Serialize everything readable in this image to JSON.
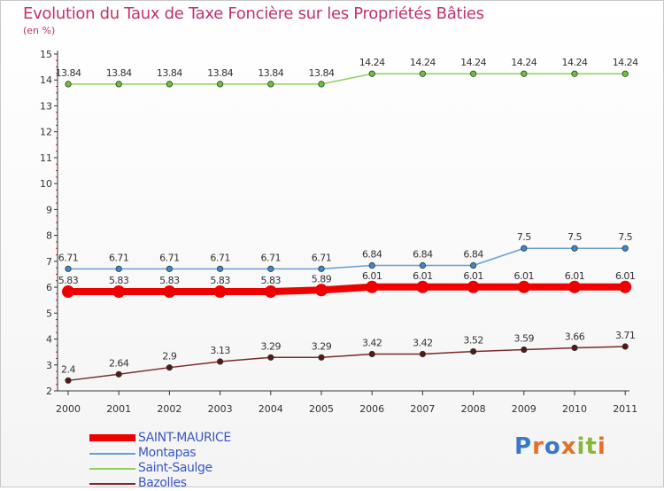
{
  "title": "Evolution du Taux de Taxe Foncière sur les Propriétés Bâties",
  "unit_label": "(en %)",
  "brand": {
    "letters": [
      "P",
      "r",
      "o",
      "x",
      "i",
      "t",
      "i"
    ],
    "colors": [
      "#3b79c6",
      "#e4702b",
      "#3b79c6",
      "#e4702b",
      "#88b83a",
      "#88b83a",
      "#e4702b"
    ]
  },
  "chart_data": {
    "type": "line",
    "title": "Evolution du Taux de Taxe Foncière sur les Propriétés Bâties",
    "ylabel": "(en %)",
    "xlabel": "",
    "categories": [
      "2000",
      "2001",
      "2002",
      "2003",
      "2004",
      "2005",
      "2006",
      "2007",
      "2008",
      "2009",
      "2010",
      "2011"
    ],
    "ylim": [
      2,
      15
    ],
    "yticks": [
      "2",
      "3",
      "4",
      "5",
      "6",
      "7",
      "8",
      "9",
      "10",
      "11",
      "12",
      "13",
      "14",
      "15"
    ],
    "legend_position": "bottom-left",
    "series": [
      {
        "name": "SAINT-MAURICE",
        "color": "#ee0000",
        "emphasis": true,
        "values": [
          5.83,
          5.83,
          5.83,
          5.83,
          5.83,
          5.89,
          6.01,
          6.01,
          6.01,
          6.01,
          6.01,
          6.01
        ],
        "labels": [
          "5.83",
          "5.83",
          "5.83",
          "5.83",
          "5.83",
          "5.89",
          "6.01",
          "6.01",
          "6.01",
          "6.01",
          "6.01",
          "6.01"
        ]
      },
      {
        "name": "Montapas",
        "color": "#6a9ed0",
        "marker": "#3f88cf",
        "values": [
          6.71,
          6.71,
          6.71,
          6.71,
          6.71,
          6.71,
          6.84,
          6.84,
          6.84,
          7.5,
          7.5,
          7.5
        ],
        "labels": [
          "6.71",
          "6.71",
          "6.71",
          "6.71",
          "6.71",
          "6.71",
          "6.84",
          "6.84",
          "6.84",
          "7.5",
          "7.5",
          "7.5"
        ]
      },
      {
        "name": "Saint-Saulge",
        "color": "#8fd15a",
        "marker": "#6cc23a",
        "values": [
          13.84,
          13.84,
          13.84,
          13.84,
          13.84,
          13.84,
          14.24,
          14.24,
          14.24,
          14.24,
          14.24,
          14.24
        ],
        "labels": [
          "13.84",
          "13.84",
          "13.84",
          "13.84",
          "13.84",
          "13.84",
          "14.24",
          "14.24",
          "14.24",
          "14.24",
          "14.24",
          "14.24"
        ]
      },
      {
        "name": "Bazolles",
        "color": "#7a2a2a",
        "marker": "#5a1616",
        "values": [
          2.4,
          2.64,
          2.9,
          3.13,
          3.29,
          3.29,
          3.42,
          3.42,
          3.52,
          3.59,
          3.66,
          3.71
        ],
        "labels": [
          "2.4",
          "2.64",
          "2.9",
          "3.13",
          "3.29",
          "3.29",
          "3.42",
          "3.42",
          "3.52",
          "3.59",
          "3.66",
          "3.71"
        ]
      }
    ]
  }
}
